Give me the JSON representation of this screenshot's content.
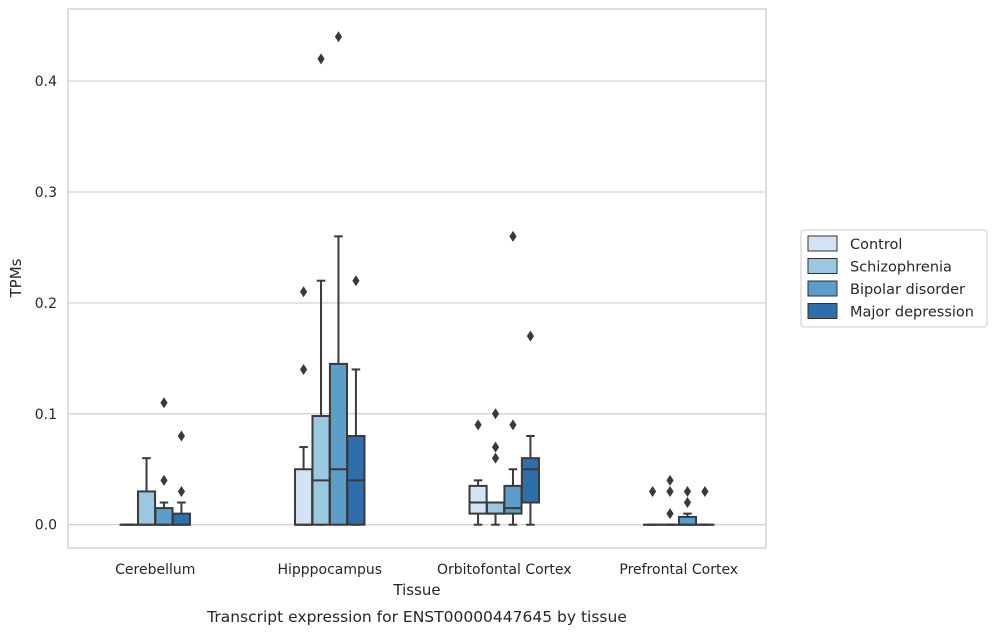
{
  "chart_data": {
    "type": "box",
    "xlabel": "Tissue",
    "ylabel": "TPMs",
    "caption": "Transcript expression for ENST00000447645 by tissue",
    "ylim": [
      -0.021,
      0.465
    ],
    "yticks": [
      0.0,
      0.1,
      0.2,
      0.3,
      0.4
    ],
    "ytick_labels": [
      "0.0",
      "0.1",
      "0.2",
      "0.3",
      "0.4"
    ],
    "grid": "horizontal",
    "legend_position": "right",
    "categories": [
      "Cerebellum",
      "Hipppocampus",
      "Orbitofontal Cortex",
      "Prefrontal Cortex"
    ],
    "series": [
      {
        "name": "Control",
        "color": "#d3e3f3",
        "boxes": [
          {
            "q1": 0.0,
            "median": 0.0,
            "q3": 0.0,
            "whislo": 0.0,
            "whishi": 0.0,
            "fliers": []
          },
          {
            "q1": 0.0,
            "median": 0.0,
            "q3": 0.05,
            "whislo": 0.0,
            "whishi": 0.07,
            "fliers": [
              0.14,
              0.21
            ]
          },
          {
            "q1": 0.01,
            "median": 0.02,
            "q3": 0.035,
            "whislo": 0.0,
            "whishi": 0.04,
            "fliers": [
              0.09
            ]
          },
          {
            "q1": 0.0,
            "median": 0.0,
            "q3": 0.0,
            "whislo": 0.0,
            "whishi": 0.0,
            "fliers": [
              0.03
            ]
          }
        ]
      },
      {
        "name": "Schizophrenia",
        "color": "#9ac8e0",
        "boxes": [
          {
            "q1": 0.0,
            "median": 0.0,
            "q3": 0.03,
            "whislo": 0.0,
            "whishi": 0.06,
            "fliers": []
          },
          {
            "q1": 0.0,
            "median": 0.04,
            "q3": 0.098,
            "whislo": 0.0,
            "whishi": 0.22,
            "fliers": [
              0.42
            ]
          },
          {
            "q1": 0.01,
            "median": 0.01,
            "q3": 0.02,
            "whislo": 0.0,
            "whishi": 0.02,
            "fliers": [
              0.06,
              0.07,
              0.1
            ]
          },
          {
            "q1": 0.0,
            "median": 0.0,
            "q3": 0.0,
            "whislo": 0.0,
            "whishi": 0.0,
            "fliers": [
              0.01,
              0.03,
              0.04
            ]
          }
        ]
      },
      {
        "name": "Bipolar disorder",
        "color": "#5a9ec9",
        "boxes": [
          {
            "q1": 0.0,
            "median": 0.0,
            "q3": 0.015,
            "whislo": 0.0,
            "whishi": 0.02,
            "fliers": [
              0.04,
              0.11
            ]
          },
          {
            "q1": 0.0,
            "median": 0.05,
            "q3": 0.145,
            "whislo": 0.0,
            "whishi": 0.26,
            "fliers": [
              0.44
            ]
          },
          {
            "q1": 0.01,
            "median": 0.015,
            "q3": 0.035,
            "whislo": 0.0,
            "whishi": 0.05,
            "fliers": [
              0.09,
              0.26
            ]
          },
          {
            "q1": 0.0,
            "median": 0.0,
            "q3": 0.007,
            "whislo": 0.0,
            "whishi": 0.01,
            "fliers": [
              0.02,
              0.03
            ]
          }
        ]
      },
      {
        "name": "Major depression",
        "color": "#2d6fad",
        "boxes": [
          {
            "q1": 0.0,
            "median": 0.0,
            "q3": 0.01,
            "whislo": 0.0,
            "whishi": 0.02,
            "fliers": [
              0.03,
              0.08
            ]
          },
          {
            "q1": 0.0,
            "median": 0.04,
            "q3": 0.08,
            "whislo": 0.0,
            "whishi": 0.14,
            "fliers": [
              0.22
            ]
          },
          {
            "q1": 0.02,
            "median": 0.05,
            "q3": 0.06,
            "whislo": 0.0,
            "whishi": 0.08,
            "fliers": [
              0.17
            ]
          },
          {
            "q1": 0.0,
            "median": 0.0,
            "q3": 0.0,
            "whislo": 0.0,
            "whishi": 0.0,
            "fliers": [
              0.03
            ]
          }
        ]
      }
    ]
  }
}
